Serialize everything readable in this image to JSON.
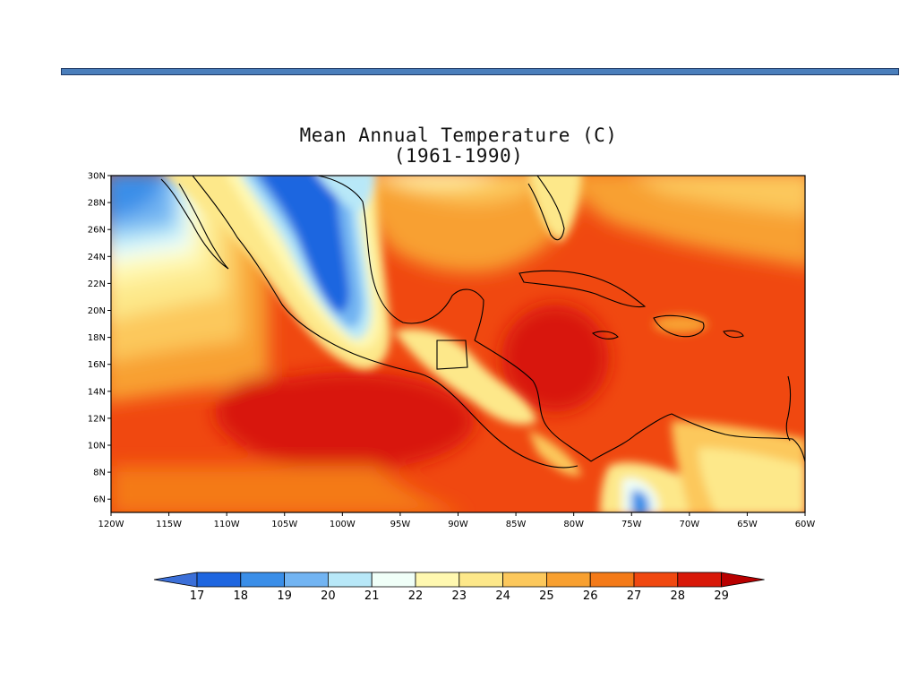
{
  "title": {
    "line1": "Mean Annual Temperature (C)",
    "line2": "(1961-1990)"
  },
  "map": {
    "lon_range": [
      -120,
      -60
    ],
    "lat_range": [
      5,
      30
    ],
    "lat_ticks": [
      "30N",
      "28N",
      "26N",
      "24N",
      "22N",
      "20N",
      "18N",
      "16N",
      "14N",
      "12N",
      "10N",
      "8N",
      "6N"
    ],
    "lon_ticks": [
      "120W",
      "115W",
      "110W",
      "105W",
      "100W",
      "95W",
      "90W",
      "85W",
      "80W",
      "75W",
      "70W",
      "65W",
      "60W"
    ]
  },
  "colorbar": {
    "labels": [
      "17",
      "18",
      "19",
      "20",
      "21",
      "22",
      "23",
      "24",
      "25",
      "26",
      "27",
      "28",
      "29"
    ],
    "colors": [
      "#3b6fd8",
      "#1e66e0",
      "#3a8ee8",
      "#72b4f2",
      "#b8e8f8",
      "#f0fff8",
      "#fff8b0",
      "#fde88a",
      "#fcc85c",
      "#f8a030",
      "#f47a18",
      "#f04810",
      "#d81808",
      "#b80000"
    ]
  }
}
